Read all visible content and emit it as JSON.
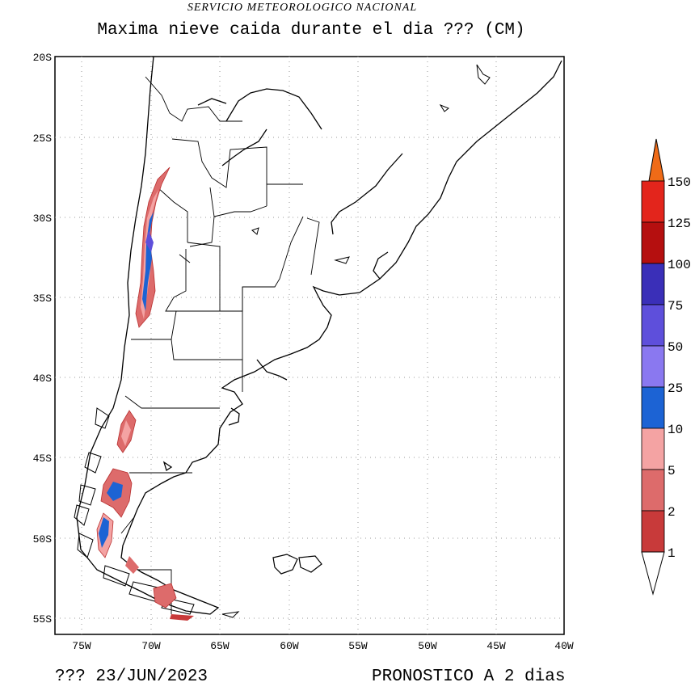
{
  "header": {
    "organization": "SERVICIO METEOROLOGICO NACIONAL",
    "title": "Maxima nieve caida durante el dia ??? (CM)"
  },
  "axes": {
    "lat_labels": [
      "20S",
      "25S",
      "30S",
      "35S",
      "40S",
      "45S",
      "50S",
      "55S"
    ],
    "lon_labels": [
      "75W",
      "70W",
      "65W",
      "60W",
      "55W",
      "50W",
      "45W",
      "40W"
    ]
  },
  "legend": {
    "labels": [
      "1",
      "2",
      "5",
      "10",
      "25",
      "50",
      "75",
      "100",
      "125",
      "150"
    ],
    "colors": [
      "#ffffff",
      "#c83a3a",
      "#dd6b6b",
      "#f4a3a3",
      "#1c63d4",
      "#8a78f0",
      "#5e4fdb",
      "#3a2fb8",
      "#b50f0f",
      "#e3251c",
      "#ef6b17"
    ]
  },
  "footer": {
    "date": "???  23/JUN/2023",
    "forecast": "PRONOSTICO A 2 dias"
  }
}
